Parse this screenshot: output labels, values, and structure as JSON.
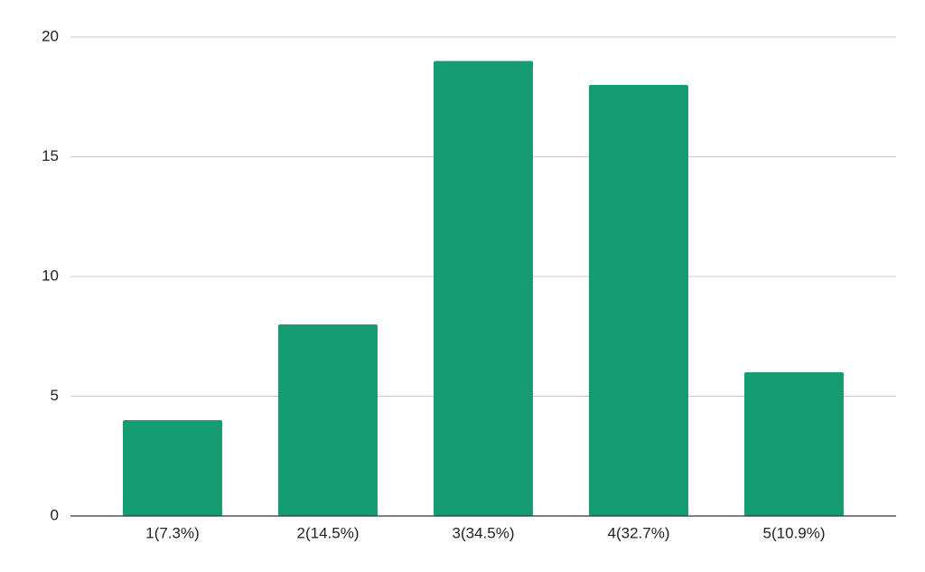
{
  "chart_data": {
    "type": "bar",
    "categories": [
      "1(7.3%)",
      "2(14.5%)",
      "3(34.5%)",
      "4(32.7%)",
      "5(10.9%)"
    ],
    "values": [
      4,
      8,
      19,
      18,
      6
    ],
    "color": "#159c72",
    "ylim": [
      0,
      20
    ],
    "yticks": [
      0,
      5,
      10,
      15,
      20
    ],
    "grid": true
  }
}
